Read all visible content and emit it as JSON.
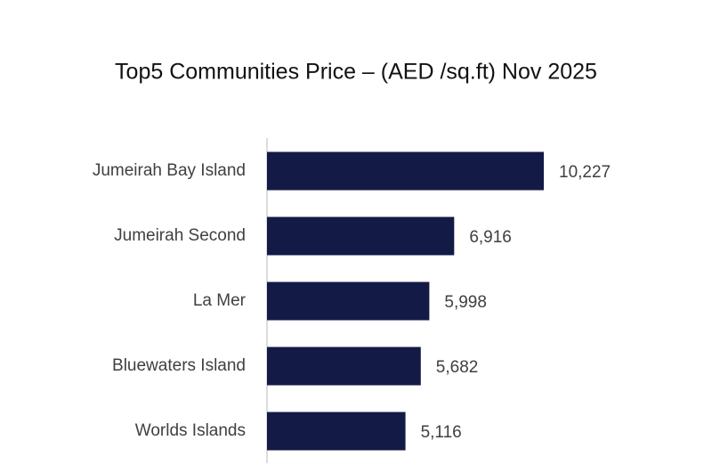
{
  "chart_data": {
    "type": "bar",
    "orientation": "horizontal",
    "title": "Top5 Communities Price – (AED /sq.ft)  Nov 2025",
    "categories": [
      "Jumeirah Bay Island",
      "Jumeirah Second",
      "La Mer",
      "Bluewaters Island",
      "Worlds Islands"
    ],
    "values": [
      10227,
      6916,
      5998,
      5682,
      5116
    ],
    "value_labels": [
      "10,227",
      "6,916",
      "5,998",
      "5,682",
      "5,116"
    ],
    "color": "#131a46"
  }
}
